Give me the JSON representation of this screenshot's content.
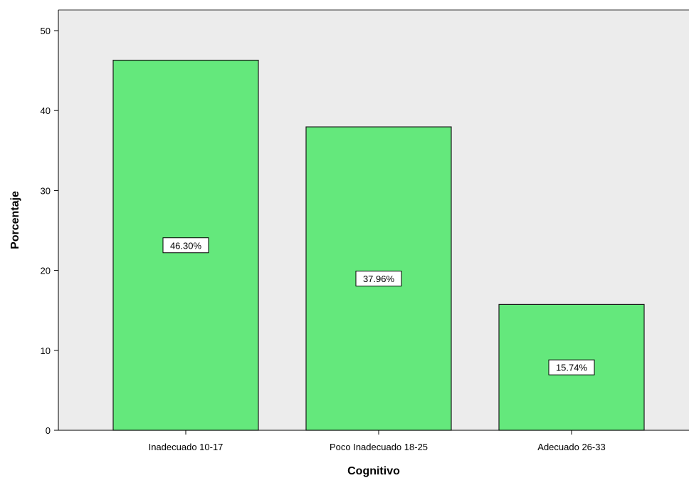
{
  "chart_data": {
    "type": "bar",
    "categories": [
      "Inadecuado 10-17",
      "Poco Inadecuado 18-25",
      "Adecuado 26-33"
    ],
    "values": [
      46.3,
      37.96,
      15.74
    ],
    "data_labels": [
      "46.30%",
      "37.96%",
      "15.74%"
    ],
    "title": "",
    "xlabel": "Cognitivo",
    "ylabel": "Porcentaje",
    "ylim": [
      0,
      50
    ],
    "yticks": [
      "0",
      "10",
      "20",
      "30",
      "40",
      "50"
    ],
    "grid": false,
    "legend": "none"
  },
  "colors": {
    "bar_fill": "#64e87c",
    "bar_stroke": "#1a1a1a",
    "plot_background": "#ececec",
    "label_box": "#ffffff"
  }
}
